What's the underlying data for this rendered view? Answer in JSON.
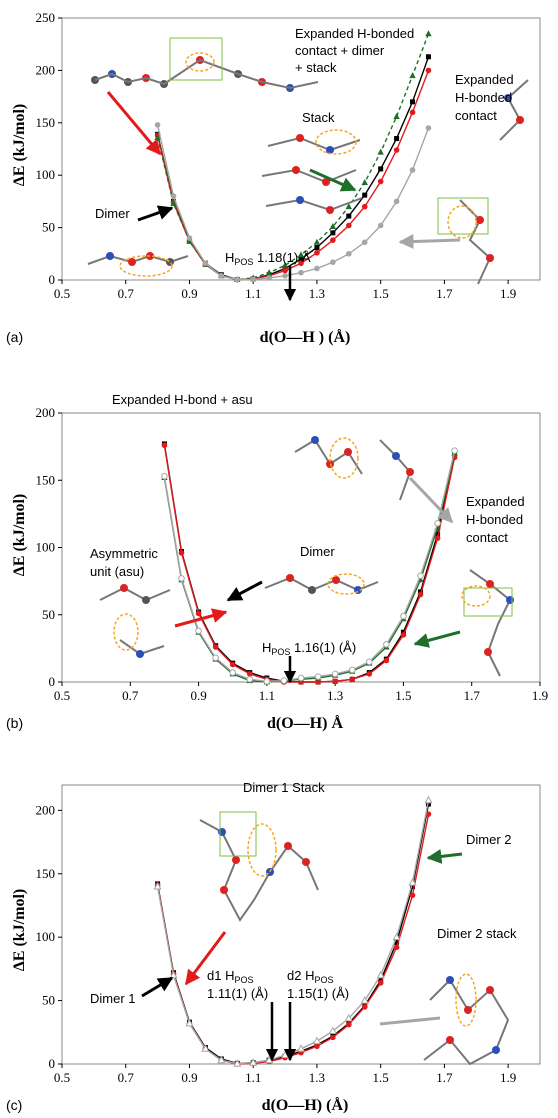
{
  "colors": {
    "black": "#000000",
    "red": "#e31a1c",
    "green": "#1f6f2a",
    "gray": "#a6a6a6",
    "orange": "#f5a623"
  },
  "chart_data": [
    {
      "panel": "(a)",
      "type": "line",
      "xlabel": "d(O—H )  (Å)",
      "ylabel": "ΔE (kJ/mol)",
      "xlim": [
        0.5,
        2.0
      ],
      "ylim": [
        0,
        250
      ],
      "xticks": [
        "0.5",
        "0.7",
        "0.9",
        "1.1",
        "1.3",
        "1.5",
        "1.7",
        "1.9"
      ],
      "yticks": [
        "0",
        "50",
        "100",
        "150",
        "200",
        "250"
      ],
      "series": [
        {
          "color": "black",
          "marker": "square",
          "x": [
            0.8,
            0.85,
            0.9,
            0.95,
            1.0,
            1.05,
            1.1,
            1.15,
            1.2,
            1.25,
            1.3,
            1.35,
            1.4,
            1.45,
            1.5,
            1.55,
            1.6,
            1.65
          ],
          "y": [
            139,
            75,
            38,
            16,
            5,
            0.5,
            1,
            5,
            11,
            20,
            31,
            45,
            61,
            81,
            106,
            135,
            170,
            213
          ]
        },
        {
          "color": "red",
          "marker": "circle",
          "x": [
            0.8,
            0.85,
            0.9,
            0.95,
            1.0,
            1.05,
            1.1,
            1.15,
            1.2,
            1.25,
            1.3,
            1.35,
            1.4,
            1.45,
            1.5,
            1.55,
            1.6,
            1.65
          ],
          "y": [
            138,
            74,
            37,
            15,
            4,
            0.3,
            1,
            4,
            9,
            16,
            26,
            38,
            52,
            70,
            94,
            124,
            160,
            200
          ]
        },
        {
          "color": "green",
          "marker": "triangle",
          "x": [
            0.8,
            0.85,
            0.9,
            0.95,
            1.0,
            1.05,
            1.1,
            1.15,
            1.2,
            1.25,
            1.3,
            1.35,
            1.4,
            1.45,
            1.5,
            1.55,
            1.6,
            1.65
          ],
          "y": [
            136,
            73,
            37,
            15,
            4,
            0.5,
            2,
            7,
            14,
            24,
            36,
            51,
            70,
            93,
            122,
            156,
            195,
            235
          ]
        },
        {
          "color": "gray",
          "marker": "circle",
          "x": [
            0.8,
            0.85,
            0.9,
            0.95,
            1.0,
            1.05,
            1.1,
            1.15,
            1.2,
            1.25,
            1.3,
            1.35,
            1.4,
            1.45,
            1.5,
            1.55,
            1.6,
            1.65
          ],
          "y": [
            148,
            80,
            40,
            16,
            4,
            0.5,
            0.5,
            2,
            4,
            7,
            11,
            17,
            25,
            36,
            52,
            75,
            105,
            145
          ]
        }
      ],
      "annotations": [
        {
          "id": "a-expanded-all-1",
          "text": "Expanded H-bonded"
        },
        {
          "id": "a-expanded-all-2",
          "text": "contact + dimer"
        },
        {
          "id": "a-expanded-all-3",
          "text": "+ stack"
        },
        {
          "id": "a-expanded-1",
          "text": "Expanded"
        },
        {
          "id": "a-expanded-2",
          "text": "H-bonded"
        },
        {
          "id": "a-expanded-3",
          "text": "contact"
        },
        {
          "id": "a-stack",
          "text": "Stack"
        },
        {
          "id": "a-dimer",
          "text": "Dimer"
        },
        {
          "id": "a-hpos-h",
          "text": "H"
        },
        {
          "id": "a-hpos-sub",
          "text": "POS"
        },
        {
          "id": "a-hpos-val",
          "text": " 1.18(1) Å"
        }
      ]
    },
    {
      "panel": "(b)",
      "type": "line",
      "xlabel": "d(O—H) Å",
      "ylabel": "ΔE (kJ/mol)",
      "xlim": [
        0.5,
        1.9
      ],
      "ylim": [
        0,
        200
      ],
      "xticks": [
        "0.5",
        "0.7",
        "0.9",
        "1.1",
        "1.3",
        "1.5",
        "1.7",
        "1.9"
      ],
      "yticks": [
        "0",
        "50",
        "100",
        "150",
        "200"
      ],
      "series": [
        {
          "color": "black",
          "marker": "square",
          "x": [
            0.8,
            0.85,
            0.9,
            0.95,
            1.0,
            1.05,
            1.1,
            1.15,
            1.2,
            1.25,
            1.3,
            1.35,
            1.4,
            1.45,
            1.5,
            1.55,
            1.6,
            1.65
          ],
          "y": [
            177,
            97,
            52,
            27,
            14,
            7,
            3,
            0.5,
            0,
            0,
            0.5,
            2,
            7,
            17,
            37,
            67,
            110,
            171
          ]
        },
        {
          "color": "red",
          "marker": "circle",
          "x": [
            0.8,
            0.85,
            0.9,
            0.95,
            1.0,
            1.05,
            1.1,
            1.15,
            1.2,
            1.25,
            1.3,
            1.35,
            1.4,
            1.45,
            1.5,
            1.55,
            1.6,
            1.65
          ],
          "y": [
            176,
            96,
            51,
            26,
            13,
            6,
            2,
            0,
            0,
            0,
            0.5,
            2,
            6,
            16,
            35,
            65,
            107,
            167
          ]
        },
        {
          "color": "green",
          "marker": "triangle",
          "x": [
            0.8,
            0.85,
            0.9,
            0.95,
            1.0,
            1.05,
            1.1,
            1.15,
            1.2,
            1.25,
            1.3,
            1.35,
            1.4,
            1.45,
            1.5,
            1.55,
            1.6,
            1.65
          ],
          "y": [
            152,
            76,
            37,
            17,
            6,
            1,
            0,
            1,
            2,
            3,
            5,
            8,
            14,
            26,
            47,
            76,
            115,
            170
          ]
        },
        {
          "color": "gray",
          "marker": "circle-open",
          "x": [
            0.8,
            0.85,
            0.9,
            0.95,
            1.0,
            1.05,
            1.1,
            1.15,
            1.2,
            1.25,
            1.3,
            1.35,
            1.4,
            1.45,
            1.5,
            1.55,
            1.6,
            1.65
          ],
          "y": [
            153,
            77,
            38,
            18,
            7,
            2,
            0.5,
            1,
            3,
            4,
            6,
            9,
            15,
            28,
            49,
            79,
            118,
            172
          ]
        }
      ],
      "annotations": [
        {
          "id": "b-exp-asu",
          "text": "Expanded H-bond + asu"
        },
        {
          "id": "b-expanded-1",
          "text": "Expanded"
        },
        {
          "id": "b-expanded-2",
          "text": "H-bonded"
        },
        {
          "id": "b-expanded-3",
          "text": "contact"
        },
        {
          "id": "b-asu-1",
          "text": "Asymmetric"
        },
        {
          "id": "b-asu-2",
          "text": "unit (asu)"
        },
        {
          "id": "b-dimer",
          "text": "Dimer"
        },
        {
          "id": "b-hpos-h",
          "text": "H"
        },
        {
          "id": "b-hpos-sub",
          "text": "POS"
        },
        {
          "id": "b-hpos-val",
          "text": " 1.16(1) (Å)"
        }
      ]
    },
    {
      "panel": "(c)",
      "type": "line",
      "xlabel": "d(O—H) (Å)",
      "ylabel": "ΔE (kJ/mol)",
      "xlim": [
        0.5,
        2.0
      ],
      "ylim": [
        0,
        220
      ],
      "xticks": [
        "0.5",
        "0.7",
        "0.9",
        "1.1",
        "1.3",
        "1.5",
        "1.7",
        "1.9"
      ],
      "yticks": [
        "0",
        "50",
        "100",
        "150",
        "200"
      ],
      "series": [
        {
          "color": "black",
          "marker": "square",
          "x": [
            0.8,
            0.85,
            0.9,
            0.95,
            1.0,
            1.05,
            1.1,
            1.15,
            1.2,
            1.25,
            1.3,
            1.35,
            1.4,
            1.45,
            1.5,
            1.55,
            1.6,
            1.65
          ],
          "y": [
            142,
            72,
            33,
            13,
            4,
            0.5,
            1,
            3,
            6,
            10,
            15,
            22,
            32,
            46,
            66,
            96,
            140,
            205
          ]
        },
        {
          "color": "red",
          "marker": "circle",
          "x": [
            0.8,
            0.85,
            0.9,
            0.95,
            1.0,
            1.05,
            1.1,
            1.15,
            1.2,
            1.25,
            1.3,
            1.35,
            1.4,
            1.45,
            1.5,
            1.55,
            1.6,
            1.65
          ],
          "y": [
            141,
            71,
            32,
            12,
            3,
            0,
            0.5,
            2,
            5,
            9,
            14,
            21,
            31,
            45,
            64,
            92,
            133,
            197
          ]
        },
        {
          "color": "gray",
          "marker": "triangle-open",
          "x": [
            0.8,
            0.85,
            0.9,
            0.95,
            1.0,
            1.05,
            1.1,
            1.15,
            1.2,
            1.25,
            1.3,
            1.35,
            1.4,
            1.45,
            1.5,
            1.55,
            1.6,
            1.65
          ],
          "y": [
            140,
            70,
            32,
            12,
            3,
            0.3,
            1,
            3,
            7,
            12,
            18,
            26,
            36,
            50,
            70,
            100,
            143,
            208
          ]
        }
      ],
      "annotations": [
        {
          "id": "c-dimer1-stack",
          "text": "Dimer 1 Stack"
        },
        {
          "id": "c-dimer2",
          "text": "Dimer 2"
        },
        {
          "id": "c-dimer2-stack",
          "text": "Dimer 2 stack"
        },
        {
          "id": "c-dimer1",
          "text": "Dimer 1"
        },
        {
          "id": "c-d1-pre",
          "text": "d1 H"
        },
        {
          "id": "c-d1-sub",
          "text": "POS"
        },
        {
          "id": "c-d1-val",
          "text": "1.11(1) (Å)"
        },
        {
          "id": "c-d2-pre",
          "text": "d2 H"
        },
        {
          "id": "c-d2-sub",
          "text": "POS"
        },
        {
          "id": "c-d2-val",
          "text": "1.15(1) (Å)"
        }
      ]
    }
  ]
}
